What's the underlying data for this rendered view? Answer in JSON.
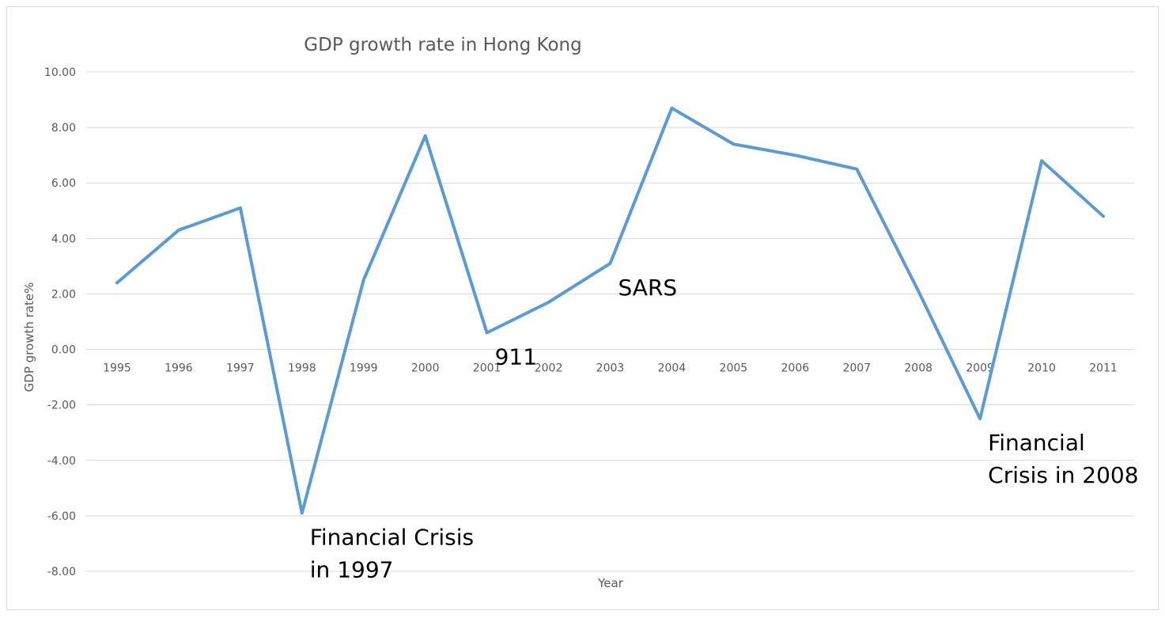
{
  "chart_data": {
    "type": "line",
    "title": "GDP growth rate in Hong Kong",
    "xlabel": "Year",
    "ylabel": "GDP growth rate%",
    "ylim": [
      -8,
      10
    ],
    "ytick_step": 2,
    "grid": true,
    "legend": "none",
    "line_color": "#5b9bd5",
    "categories": [
      "1995",
      "1996",
      "1997",
      "1998",
      "1999",
      "2000",
      "2001",
      "2002",
      "2003",
      "2004",
      "2005",
      "2006",
      "2007",
      "2008",
      "2009",
      "2010",
      "2011"
    ],
    "series": [
      {
        "values": [
          2.4,
          4.3,
          5.1,
          -5.9,
          2.5,
          7.7,
          0.6,
          1.7,
          3.1,
          8.7,
          7.4,
          7.0,
          6.5,
          2.1,
          -2.5,
          6.8,
          4.8
        ]
      }
    ],
    "annotations": [
      {
        "category": "1998",
        "lines": [
          "Financial Crisis",
          "in 1997"
        ]
      },
      {
        "category": "2001",
        "lines": [
          "911"
        ]
      },
      {
        "category": "2003",
        "lines": [
          "SARS"
        ]
      },
      {
        "category": "2009",
        "lines": [
          "Financial",
          "Crisis in 2008"
        ]
      }
    ]
  }
}
